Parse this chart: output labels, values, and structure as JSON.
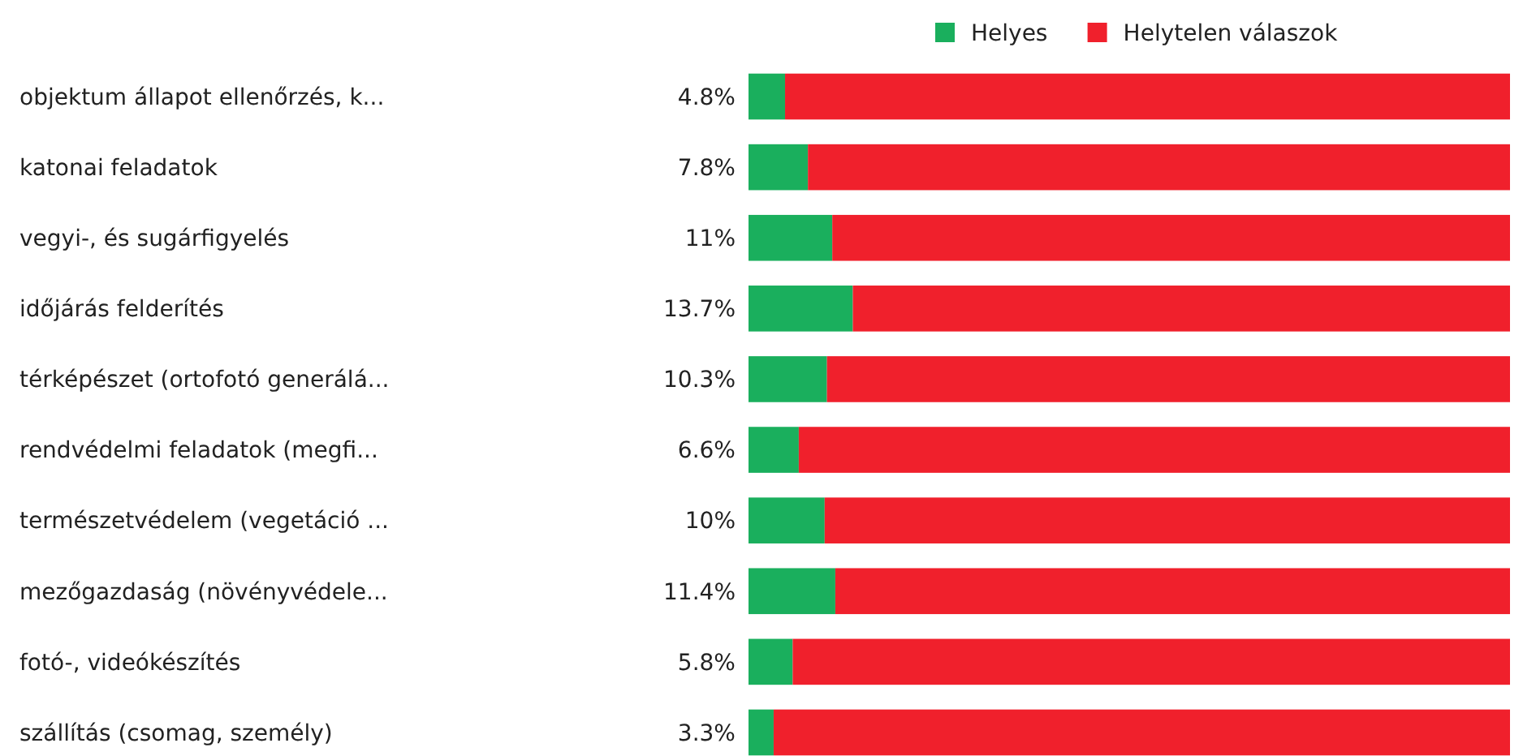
{
  "chart_data": {
    "type": "bar",
    "orientation": "horizontal",
    "stacked": true,
    "categories": [
      "objektum állapot ellenőrzés, k...",
      "katonai feladatok",
      "vegyi-, és sugárfigyelés",
      "időjárás felderítés",
      "térképészet (ortofotó generálá...",
      "rendvédelmi feladatok (megfi...",
      "természetvédelem (vegetáció ...",
      "mezőgazdaság (növényvédele...",
      "fotó-, videókészítés",
      "szállítás (csomag, személy)"
    ],
    "series": [
      {
        "name": "Helyes",
        "color": "#1aaf5d",
        "values": [
          4.8,
          7.8,
          11,
          13.7,
          10.3,
          6.6,
          10,
          11.4,
          5.8,
          3.3
        ],
        "value_labels": [
          "4.8%",
          "7.8%",
          "11%",
          "13.7%",
          "10.3%",
          "6.6%",
          "10%",
          "11.4%",
          "5.8%",
          "3.3%"
        ]
      },
      {
        "name": "Helytelen válaszok",
        "color": "#f0202c",
        "values": [
          95.2,
          92.2,
          89,
          86.3,
          89.7,
          93.4,
          90,
          88.6,
          94.2,
          96.7
        ]
      }
    ],
    "tick_labels": "y",
    "legend": "top"
  }
}
